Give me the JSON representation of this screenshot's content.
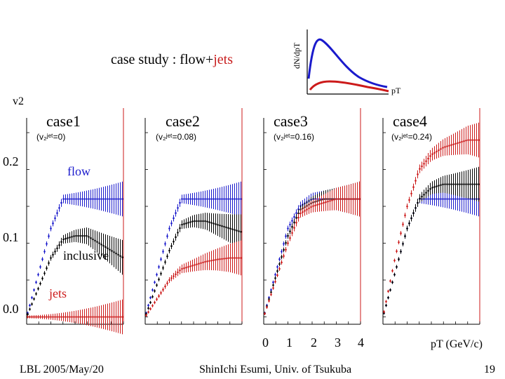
{
  "slide": {
    "title_prefix": "case study : flow+",
    "title_jets": "jets",
    "footer_left": "LBL 2005/May/20",
    "footer_center": "ShinIchi Esumi, Univ. of Tsukuba",
    "page_number": "19",
    "inset": {
      "ylabel": "dN/dpT",
      "xlabel": "pT"
    },
    "y_axis_label": "v2",
    "x_axis_label": "pT (GeV/c)",
    "y_ticks": [
      "0.2",
      "0.1",
      "0.0"
    ],
    "x_ticks": [
      "0",
      "1",
      "2",
      "3",
      "4"
    ],
    "series_labels": {
      "flow": "flow",
      "inclusive": "inclusive",
      "jets": "jets"
    },
    "panels": [
      {
        "name": "case1",
        "v2_jet": "(v₂ʲᵉᵗ=0)"
      },
      {
        "name": "case2",
        "v2_jet": "(v₂ʲᵉᵗ=0.08)"
      },
      {
        "name": "case3",
        "v2_jet": "(v₂ʲᵉᵗ=0.16)"
      },
      {
        "name": "case4",
        "v2_jet": "(v₂ʲᵉᵗ=0.24)"
      }
    ]
  },
  "colors": {
    "flow": "#1a1acc",
    "inclusive": "#000000",
    "jets": "#cc1a1a"
  },
  "chart_data": [
    {
      "type": "scatter",
      "title": "case1",
      "xlabel": "pT (GeV/c)",
      "ylabel": "v2",
      "xlim": [
        0,
        4
      ],
      "ylim": [
        -0.01,
        0.27
      ],
      "series": [
        {
          "name": "flow",
          "x": [
            0,
            0.5,
            1.0,
            1.5,
            2.0,
            2.5,
            3.0,
            3.5,
            4.0
          ],
          "y": [
            0,
            0.06,
            0.12,
            0.16,
            0.16,
            0.16,
            0.16,
            0.16,
            0.16
          ]
        },
        {
          "name": "inclusive",
          "x": [
            0,
            0.5,
            1.0,
            1.5,
            2.0,
            2.5,
            3.0,
            3.5,
            4.0
          ],
          "y": [
            0,
            0.04,
            0.08,
            0.105,
            0.11,
            0.11,
            0.1,
            0.09,
            0.08
          ]
        },
        {
          "name": "jets",
          "x": [
            0,
            0.5,
            1.0,
            1.5,
            2.0,
            2.5,
            3.0,
            3.5,
            4.0
          ],
          "y": [
            0,
            0,
            0,
            0,
            0,
            0,
            0,
            0,
            0
          ]
        }
      ]
    },
    {
      "type": "scatter",
      "title": "case2",
      "xlabel": "pT (GeV/c)",
      "ylabel": "v2",
      "xlim": [
        0,
        4
      ],
      "ylim": [
        -0.01,
        0.27
      ],
      "series": [
        {
          "name": "flow",
          "x": [
            0,
            0.5,
            1.0,
            1.5,
            2.0,
            2.5,
            3.0,
            3.5,
            4.0
          ],
          "y": [
            0,
            0.06,
            0.12,
            0.16,
            0.16,
            0.16,
            0.16,
            0.16,
            0.16
          ]
        },
        {
          "name": "inclusive",
          "x": [
            0,
            0.5,
            1.0,
            1.5,
            2.0,
            2.5,
            3.0,
            3.5,
            4.0
          ],
          "y": [
            0,
            0.045,
            0.09,
            0.125,
            0.13,
            0.13,
            0.125,
            0.12,
            0.115
          ]
        },
        {
          "name": "jets",
          "x": [
            0,
            0.5,
            1.0,
            1.5,
            2.0,
            2.5,
            3.0,
            3.5,
            4.0
          ],
          "y": [
            0,
            0.025,
            0.05,
            0.065,
            0.07,
            0.075,
            0.078,
            0.08,
            0.08
          ]
        }
      ]
    },
    {
      "type": "scatter",
      "title": "case3",
      "xlabel": "pT (GeV/c)",
      "ylabel": "v2",
      "xlim": [
        0,
        4
      ],
      "ylim": [
        -0.01,
        0.27
      ],
      "series": [
        {
          "name": "flow",
          "x": [
            0,
            0.5,
            1.0,
            1.5,
            2.0,
            2.5,
            3.0,
            3.5,
            4.0
          ],
          "y": [
            0,
            0.06,
            0.12,
            0.15,
            0.16,
            0.16,
            0.16,
            0.16,
            0.16
          ]
        },
        {
          "name": "inclusive",
          "x": [
            0,
            0.5,
            1.0,
            1.5,
            2.0,
            2.5,
            3.0,
            3.5,
            4.0
          ],
          "y": [
            0,
            0.055,
            0.11,
            0.145,
            0.155,
            0.16,
            0.16,
            0.16,
            0.16
          ]
        },
        {
          "name": "jets",
          "x": [
            0,
            0.5,
            1.0,
            1.5,
            2.0,
            2.5,
            3.0,
            3.5,
            4.0
          ],
          "y": [
            0,
            0.05,
            0.1,
            0.14,
            0.15,
            0.155,
            0.16,
            0.16,
            0.16
          ]
        }
      ]
    },
    {
      "type": "scatter",
      "title": "case4",
      "xlabel": "pT (GeV/c)",
      "ylabel": "v2",
      "xlim": [
        0,
        4
      ],
      "ylim": [
        -0.01,
        0.27
      ],
      "series": [
        {
          "name": "flow",
          "x": [
            0,
            0.5,
            1.0,
            1.5,
            2.0,
            2.5,
            3.0,
            3.5,
            4.0
          ],
          "y": [
            0,
            0.06,
            0.12,
            0.16,
            0.16,
            0.16,
            0.16,
            0.16,
            0.16
          ]
        },
        {
          "name": "inclusive",
          "x": [
            0,
            0.5,
            1.0,
            1.5,
            2.0,
            2.5,
            3.0,
            3.5,
            4.0
          ],
          "y": [
            0,
            0.06,
            0.12,
            0.16,
            0.175,
            0.18,
            0.18,
            0.18,
            0.18
          ]
        },
        {
          "name": "jets",
          "x": [
            0,
            0.5,
            1.0,
            1.5,
            2.0,
            2.5,
            3.0,
            3.5,
            4.0
          ],
          "y": [
            0,
            0.08,
            0.15,
            0.2,
            0.22,
            0.23,
            0.235,
            0.24,
            0.24
          ]
        }
      ]
    }
  ]
}
